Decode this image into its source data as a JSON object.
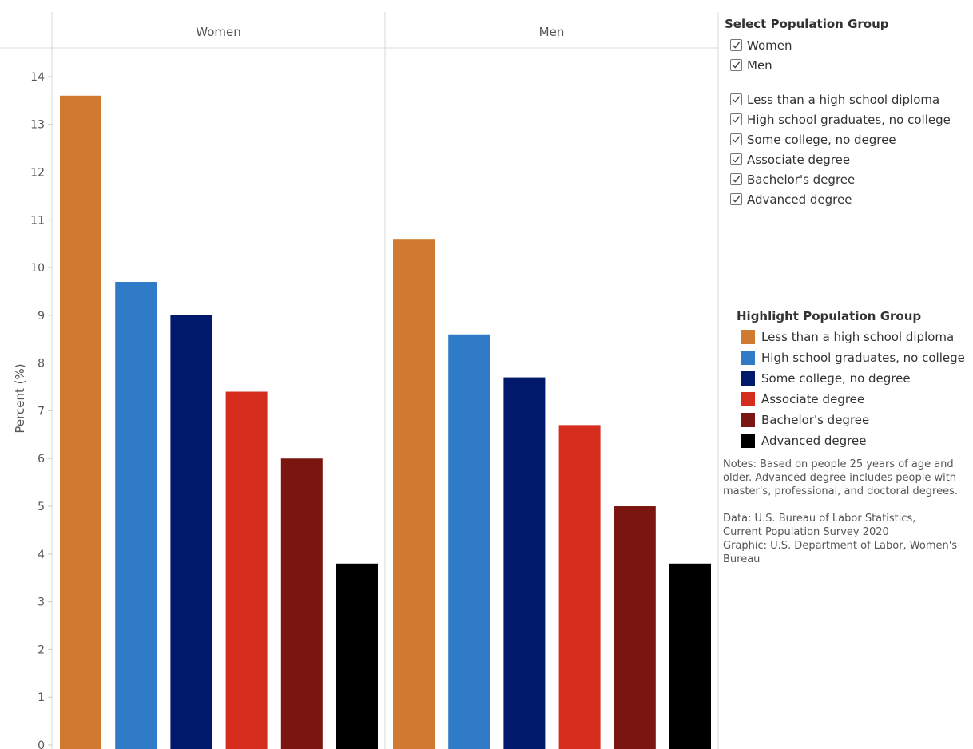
{
  "chart_data": {
    "type": "bar",
    "ylabel": "Percent (%)",
    "ylim": [
      0,
      14.6
    ],
    "yticks": [
      0,
      1,
      2,
      3,
      4,
      5,
      6,
      7,
      8,
      9,
      10,
      11,
      12,
      13,
      14
    ],
    "panels": [
      "Women",
      "Men"
    ],
    "categories": [
      "Less than a high school diploma",
      "High school graduates, no college",
      "Some college, no degree",
      "Associate degree",
      "Bachelor's degree",
      "Advanced degree"
    ],
    "series": [
      {
        "name": "Women",
        "values": [
          13.6,
          9.7,
          9.0,
          7.4,
          6.0,
          3.8
        ]
      },
      {
        "name": "Men",
        "values": [
          10.6,
          8.6,
          7.7,
          6.7,
          5.0,
          3.8
        ]
      }
    ],
    "colors": [
      "#cf7a30",
      "#2f7bc8",
      "#00196b",
      "#d42d1e",
      "#7a1510",
      "#000000"
    ],
    "grid": false
  },
  "select_control": {
    "title": "Select Population Group",
    "groups": [
      {
        "label": "Women",
        "checked": true
      },
      {
        "label": "Men",
        "checked": true
      }
    ],
    "education": [
      {
        "label": "Less than a high school diploma",
        "checked": true
      },
      {
        "label": "High school graduates, no college",
        "checked": true
      },
      {
        "label": "Some college, no degree",
        "checked": true
      },
      {
        "label": "Associate degree",
        "checked": true
      },
      {
        "label": "Bachelor's degree",
        "checked": true
      },
      {
        "label": "Advanced degree",
        "checked": true
      }
    ]
  },
  "highlight_legend": {
    "title": "Highlight Population Group",
    "items": [
      {
        "label": "Less than a high school diploma",
        "color": "#cf7a30"
      },
      {
        "label": "High school graduates, no college",
        "color": "#2f7bc8"
      },
      {
        "label": "Some college, no degree",
        "color": "#00196b"
      },
      {
        "label": "Associate degree",
        "color": "#d42d1e"
      },
      {
        "label": "Bachelor's degree",
        "color": "#7a1510"
      },
      {
        "label": "Advanced degree",
        "color": "#000000"
      }
    ]
  },
  "notes": {
    "text": "Notes: Based on people 25 years of age and older. Advanced degree includes people with master's, professional, and doctoral degrees.",
    "source_line1": "Data: U.S. Bureau of Labor Statistics,",
    "source_line2": "Current Population Survey 2020",
    "graphic": "Graphic: U.S. Department of Labor, Women's Bureau"
  }
}
